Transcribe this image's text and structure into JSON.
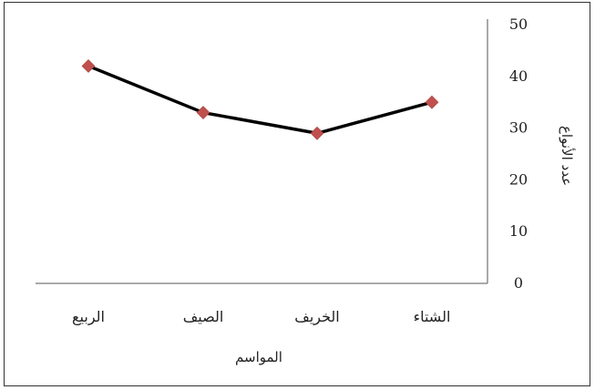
{
  "chart_data": {
    "type": "line",
    "title": "",
    "xlabel": "المواسم",
    "ylabel": "عدد الأنواع",
    "categories": [
      "الربيع",
      "الصيف",
      "الخريف",
      "الشتاء"
    ],
    "series": [
      {
        "values": [
          42,
          33,
          29,
          35
        ]
      }
    ],
    "ylim": [
      0,
      50
    ],
    "yticks": [
      0,
      10,
      20,
      30,
      40,
      50
    ],
    "y_axis_side": "right",
    "grid": false,
    "legend": "none",
    "line_color": "#000000",
    "marker": "diamond",
    "marker_color": "#c0504d"
  }
}
